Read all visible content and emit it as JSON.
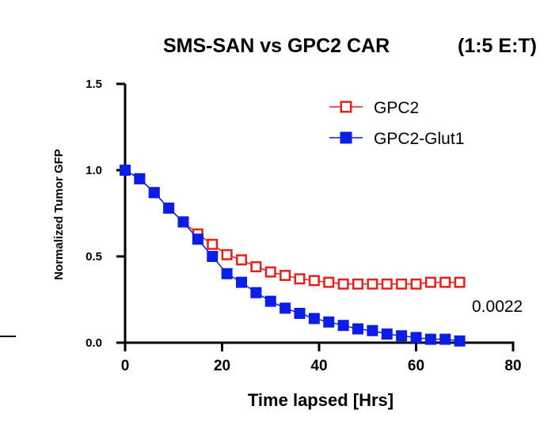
{
  "chart_data": {
    "type": "line",
    "title": "SMS-SAN vs GPC2 CAR",
    "title_suffix": "(1:5 E:T)",
    "xlabel": "Time lapsed [Hrs]",
    "ylabel": "Normalized Tumor GFP",
    "xlim": [
      0,
      80
    ],
    "ylim": [
      0,
      1.5
    ],
    "x_ticks": [
      "0",
      "20",
      "40",
      "60",
      "80"
    ],
    "y_ticks": [
      "0.0",
      "0.5",
      "1.0",
      "1.5"
    ],
    "legend_position": "top-right",
    "grid": false,
    "annotation": "0.0022",
    "series": [
      {
        "name": "GPC2",
        "color": "#e8201c",
        "marker": "open-square",
        "x": [
          0,
          3,
          6,
          9,
          12,
          15,
          18,
          21,
          24,
          27,
          30,
          33,
          36,
          39,
          42,
          45,
          48,
          51,
          54,
          57,
          60,
          63,
          66,
          69
        ],
        "y": [
          1.0,
          0.95,
          0.87,
          0.78,
          0.7,
          0.63,
          0.57,
          0.51,
          0.48,
          0.44,
          0.41,
          0.39,
          0.37,
          0.36,
          0.35,
          0.34,
          0.34,
          0.34,
          0.34,
          0.34,
          0.34,
          0.35,
          0.35,
          0.35
        ]
      },
      {
        "name": "GPC2-Glut1",
        "color": "#0a1ee8",
        "marker": "filled-square",
        "x": [
          0,
          3,
          6,
          9,
          12,
          15,
          18,
          21,
          24,
          27,
          30,
          33,
          36,
          39,
          42,
          45,
          48,
          51,
          54,
          57,
          60,
          63,
          66,
          69
        ],
        "y": [
          1.0,
          0.95,
          0.87,
          0.78,
          0.7,
          0.6,
          0.5,
          0.4,
          0.35,
          0.29,
          0.24,
          0.2,
          0.17,
          0.14,
          0.12,
          0.1,
          0.08,
          0.07,
          0.05,
          0.04,
          0.03,
          0.02,
          0.02,
          0.01
        ]
      }
    ]
  }
}
